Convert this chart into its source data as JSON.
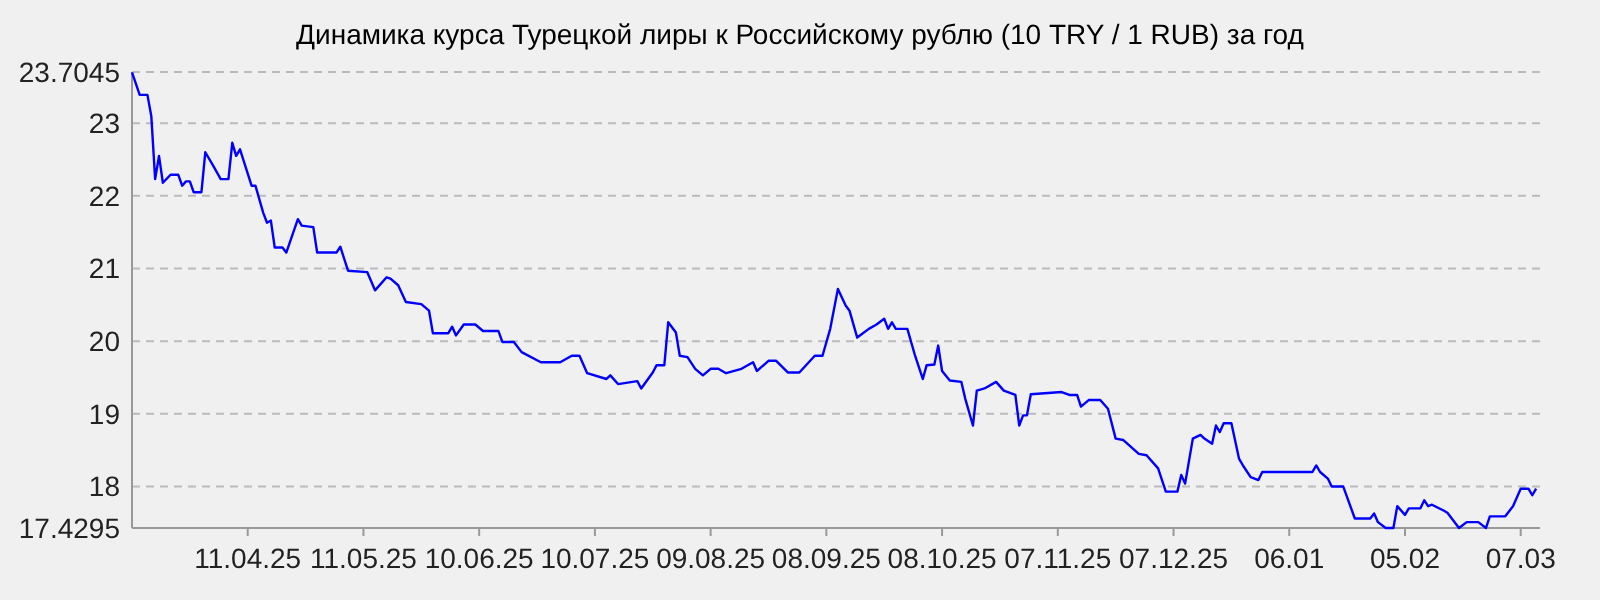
{
  "chart_data": {
    "type": "line",
    "title": "Динамика курса Турецкой лиры к Российскому рублю (10 TRY / 1 RUB) за год",
    "xlim": [
      "2025-03-12",
      "2026-03-12"
    ],
    "xticks": [
      {
        "value": "2025-04-11",
        "label": "11.04.25"
      },
      {
        "value": "2025-05-11",
        "label": "11.05.25"
      },
      {
        "value": "2025-06-10",
        "label": "10.06.25"
      },
      {
        "value": "2025-07-10",
        "label": "10.07.25"
      },
      {
        "value": "2025-08-09",
        "label": "09.08.25"
      },
      {
        "value": "2025-09-08",
        "label": "08.09.25"
      },
      {
        "value": "2025-10-08",
        "label": "08.10.25"
      },
      {
        "value": "2025-11-07",
        "label": "07.11.25"
      },
      {
        "value": "2025-12-07",
        "label": "07.12.25"
      },
      {
        "value": "2026-01-06",
        "label": "06.01"
      },
      {
        "value": "2026-02-05",
        "label": "05.02"
      },
      {
        "value": "2026-03-07",
        "label": "07.03"
      }
    ],
    "ylim": [
      17.4295,
      23.7045
    ],
    "yticks": [
      17.4295,
      18,
      19,
      20,
      21,
      22,
      23,
      23.7045
    ],
    "grid": "y",
    "marker": "none",
    "line_style": "solid",
    "series": [
      {
        "color": "#0000ff",
        "x": [
          "2025-03-12",
          "2025-03-14",
          "2025-03-16",
          "2025-03-17",
          "2025-03-18",
          "2025-03-19",
          "2025-03-20",
          "2025-03-22",
          "2025-03-24",
          "2025-03-25",
          "2025-03-26",
          "2025-03-27",
          "2025-03-28",
          "2025-03-30",
          "2025-03-31",
          "2025-04-02",
          "2025-04-04",
          "2025-04-06",
          "2025-04-07",
          "2025-04-08",
          "2025-04-09",
          "2025-04-12",
          "2025-04-13",
          "2025-04-15",
          "2025-04-16",
          "2025-04-17",
          "2025-04-18",
          "2025-04-20",
          "2025-04-21",
          "2025-04-24",
          "2025-04-25",
          "2025-04-28",
          "2025-04-29",
          "2025-05-04",
          "2025-05-05",
          "2025-05-07",
          "2025-05-12",
          "2025-05-14",
          "2025-05-17",
          "2025-05-18",
          "2025-05-20",
          "2025-05-22",
          "2025-05-26",
          "2025-05-28",
          "2025-05-29",
          "2025-06-02",
          "2025-06-03",
          "2025-06-04",
          "2025-06-06",
          "2025-06-09",
          "2025-06-11",
          "2025-06-15",
          "2025-06-16",
          "2025-06-19",
          "2025-06-21",
          "2025-06-26",
          "2025-07-01",
          "2025-07-04",
          "2025-07-06",
          "2025-07-08",
          "2025-07-13",
          "2025-07-14",
          "2025-07-16",
          "2025-07-21",
          "2025-07-22",
          "2025-07-25",
          "2025-07-26",
          "2025-07-28",
          "2025-07-29",
          "2025-07-31",
          "2025-08-01",
          "2025-08-03",
          "2025-08-05",
          "2025-08-07",
          "2025-08-09",
          "2025-08-11",
          "2025-08-13",
          "2025-08-17",
          "2025-08-20",
          "2025-08-21",
          "2025-08-24",
          "2025-08-26",
          "2025-08-29",
          "2025-09-01",
          "2025-09-05",
          "2025-09-07",
          "2025-09-09",
          "2025-09-11",
          "2025-09-13",
          "2025-09-14",
          "2025-09-16",
          "2025-09-19",
          "2025-09-21",
          "2025-09-23",
          "2025-09-24",
          "2025-09-25",
          "2025-09-26",
          "2025-09-29",
          "2025-10-01",
          "2025-10-03",
          "2025-10-04",
          "2025-10-06",
          "2025-10-07",
          "2025-10-08",
          "2025-10-10",
          "2025-10-13",
          "2025-10-14",
          "2025-10-16",
          "2025-10-17",
          "2025-10-19",
          "2025-10-22",
          "2025-10-24",
          "2025-10-27",
          "2025-10-28",
          "2025-10-29",
          "2025-10-30",
          "2025-10-31",
          "2025-11-08",
          "2025-11-10",
          "2025-11-12",
          "2025-11-13",
          "2025-11-15",
          "2025-11-18",
          "2025-11-20",
          "2025-11-22",
          "2025-11-24",
          "2025-11-28",
          "2025-11-30",
          "2025-12-03",
          "2025-12-05",
          "2025-12-08",
          "2025-12-09",
          "2025-12-10",
          "2025-12-12",
          "2025-12-14",
          "2025-12-15",
          "2025-12-17",
          "2025-12-18",
          "2025-12-19",
          "2025-12-20",
          "2025-12-22",
          "2025-12-24",
          "2025-12-25",
          "2025-12-27",
          "2025-12-29",
          "2025-12-30",
          "2026-01-12",
          "2026-01-13",
          "2026-01-14",
          "2026-01-16",
          "2026-01-17",
          "2026-01-20",
          "2026-01-23",
          "2026-01-27",
          "2026-01-28",
          "2026-01-29",
          "2026-01-31",
          "2026-02-02",
          "2026-02-03",
          "2026-02-05",
          "2026-02-06",
          "2026-02-09",
          "2026-02-10",
          "2026-02-11",
          "2026-02-12",
          "2026-02-15",
          "2026-02-16",
          "2026-02-19",
          "2026-02-21",
          "2026-02-24",
          "2026-02-26",
          "2026-02-27",
          "2026-03-03",
          "2026-03-05",
          "2026-03-07",
          "2026-03-09",
          "2026-03-10",
          "2026-03-11"
        ],
        "values": [
          23.7,
          23.39,
          23.39,
          23.1,
          22.23,
          22.55,
          22.18,
          22.29,
          22.29,
          22.14,
          22.2,
          22.2,
          22.05,
          22.05,
          22.6,
          22.42,
          22.23,
          22.23,
          22.73,
          22.55,
          22.64,
          22.14,
          22.14,
          21.77,
          21.63,
          21.66,
          21.29,
          21.29,
          21.22,
          21.68,
          21.59,
          21.57,
          21.22,
          21.22,
          21.3,
          20.97,
          20.95,
          20.7,
          20.88,
          20.86,
          20.77,
          20.54,
          20.51,
          20.42,
          20.11,
          20.11,
          20.2,
          20.08,
          20.23,
          20.23,
          20.14,
          20.14,
          19.99,
          19.99,
          19.85,
          19.71,
          19.71,
          19.8,
          19.8,
          19.56,
          19.48,
          19.53,
          19.41,
          19.45,
          19.35,
          19.57,
          19.67,
          19.67,
          20.26,
          20.12,
          19.8,
          19.78,
          19.62,
          19.53,
          19.62,
          19.62,
          19.56,
          19.62,
          19.71,
          19.59,
          19.73,
          19.73,
          19.57,
          19.57,
          19.8,
          19.8,
          20.17,
          20.72,
          20.49,
          20.42,
          20.05,
          20.17,
          20.23,
          20.31,
          20.17,
          20.26,
          20.17,
          20.17,
          19.8,
          19.48,
          19.67,
          19.68,
          19.94,
          19.59,
          19.46,
          19.44,
          19.21,
          18.84,
          19.32,
          19.35,
          19.44,
          19.32,
          19.26,
          18.84,
          18.98,
          18.98,
          19.27,
          19.3,
          19.26,
          19.26,
          19.1,
          19.19,
          19.19,
          19.07,
          18.66,
          18.64,
          18.45,
          18.43,
          18.25,
          17.93,
          17.93,
          18.16,
          18.04,
          18.66,
          18.71,
          18.66,
          18.59,
          18.84,
          18.75,
          18.87,
          18.87,
          18.38,
          18.29,
          18.13,
          18.09,
          18.2,
          18.2,
          18.29,
          18.2,
          18.11,
          18.0,
          18.0,
          17.56,
          17.56,
          17.63,
          17.51,
          17.43,
          17.43,
          17.73,
          17.61,
          17.7,
          17.7,
          17.81,
          17.73,
          17.75,
          17.67,
          17.64,
          17.43,
          17.51,
          17.51,
          17.43,
          17.59,
          17.59,
          17.73,
          17.97,
          17.97,
          17.88,
          17.97
        ]
      }
    ]
  }
}
